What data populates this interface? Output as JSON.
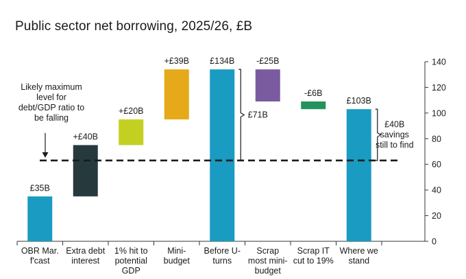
{
  "chart_data": {
    "type": "waterfall",
    "title": "Public sector net borrowing, 2025/26, £B",
    "ylim": [
      0,
      140
    ],
    "yticks": [
      0,
      20,
      40,
      60,
      80,
      100,
      120,
      140
    ],
    "reference_line": {
      "value": 63,
      "label": [
        "Likely maximum",
        "level for",
        "debt/GDP ratio to",
        "be falling"
      ]
    },
    "bars": [
      {
        "category": [
          "OBR Mar.",
          "f'cast"
        ],
        "start": 0,
        "end": 35,
        "label": "£35B",
        "color": "#1a9bc2"
      },
      {
        "category": [
          "Extra debt",
          "interest"
        ],
        "start": 35,
        "end": 75,
        "label": "+£40B",
        "color": "#263a3e"
      },
      {
        "category": [
          "1% hit to",
          "potential",
          "GDP"
        ],
        "start": 75,
        "end": 95,
        "label": "+£20B",
        "color": "#c3d022"
      },
      {
        "category": [
          "Mini-",
          "budget"
        ],
        "start": 95,
        "end": 134,
        "label": "+£39B",
        "color": "#e5a919"
      },
      {
        "category": [
          "Before U-",
          "turns"
        ],
        "start": 0,
        "end": 134,
        "label": "£134B",
        "color": "#1a9bc2"
      },
      {
        "category": [
          "Scrap",
          "most mini-",
          "budget"
        ],
        "start": 134,
        "end": 109,
        "label": "-£25B",
        "color": "#7a5ba0"
      },
      {
        "category": [
          "Scrap IT",
          "cut to 19%"
        ],
        "start": 109,
        "end": 103,
        "label": "-£6B",
        "color": "#22935a"
      },
      {
        "category": [
          "Where we",
          "stand"
        ],
        "start": 0,
        "end": 103,
        "label": "£103B",
        "color": "#1a9bc2"
      }
    ],
    "annotations": [
      {
        "label": [
          "£71B"
        ],
        "from": 63,
        "to": 134,
        "after_bar": 4
      },
      {
        "label": [
          "£40B",
          "savings",
          "still to find"
        ],
        "from": 63,
        "to": 103,
        "after_bar": 7
      }
    ]
  }
}
